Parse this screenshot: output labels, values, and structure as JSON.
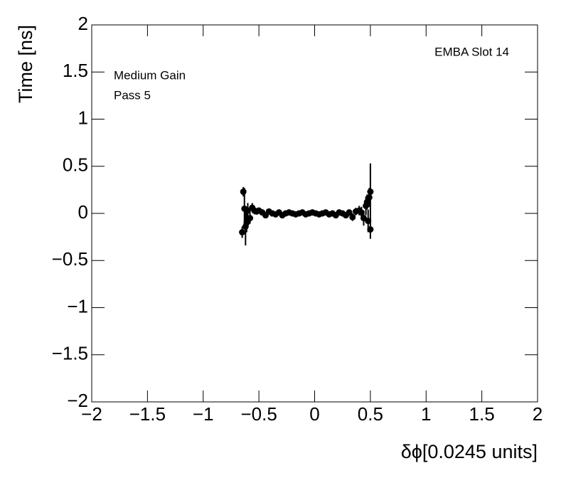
{
  "chart_data": {
    "type": "scatter",
    "xlabel": "δϕ[0.0245 units]",
    "ylabel": "Time [ns]",
    "annotations": [
      "EMBA Slot 14",
      "Medium Gain",
      "Pass 5"
    ],
    "xlim": [
      -2,
      2
    ],
    "ylim": [
      -2,
      2
    ],
    "xticks": [
      {
        "value": -2,
        "label": "−2"
      },
      {
        "value": -1.5,
        "label": "−1.5"
      },
      {
        "value": -1,
        "label": "−1"
      },
      {
        "value": -0.5,
        "label": "−0.5"
      },
      0,
      0.5,
      1,
      1.5,
      2
    ],
    "yticks": [
      {
        "value": -2,
        "label": "−2"
      },
      {
        "value": -1.5,
        "label": "−1.5"
      },
      {
        "value": -1,
        "label": "−1"
      },
      {
        "value": -0.5,
        "label": "−0.5"
      },
      0,
      0.5,
      1,
      1.5,
      2
    ],
    "series": [
      {
        "color": "#000000",
        "x": [
          -0.65,
          -0.64,
          -0.63,
          -0.62,
          -0.61,
          -0.6,
          -0.58,
          -0.56,
          -0.54,
          -0.52,
          -0.5,
          -0.47,
          -0.44,
          -0.41,
          -0.38,
          -0.35,
          -0.32,
          -0.29,
          -0.26,
          -0.23,
          -0.2,
          -0.17,
          -0.14,
          -0.11,
          -0.08,
          -0.05,
          -0.02,
          0.01,
          0.04,
          0.07,
          0.1,
          0.13,
          0.16,
          0.19,
          0.22,
          0.25,
          0.28,
          0.31,
          0.34,
          0.37,
          0.4,
          0.42,
          0.44,
          0.46,
          0.47,
          0.48,
          0.49,
          0.5,
          0.5
        ],
        "values": [
          -0.2,
          0.23,
          0.05,
          -0.14,
          -0.1,
          0.03,
          -0.05,
          0.06,
          0.03,
          0.02,
          0.03,
          0.01,
          -0.02,
          0.02,
          0.0,
          -0.01,
          0.01,
          -0.02,
          0.0,
          0.01,
          0.0,
          -0.01,
          0.0,
          0.01,
          -0.01,
          0.0,
          0.01,
          0.0,
          -0.01,
          0.0,
          0.01,
          -0.01,
          0.0,
          -0.02,
          0.01,
          0.0,
          -0.02,
          0.01,
          -0.04,
          0.02,
          0.03,
          0.01,
          -0.05,
          0.08,
          0.12,
          -0.08,
          0.17,
          0.23,
          -0.17
        ],
        "errors": [
          0.06,
          0.05,
          0.22,
          0.2,
          0.1,
          0.08,
          0.06,
          0.05,
          0.04,
          0.03,
          0.03,
          0.02,
          0.02,
          0.02,
          0.02,
          0.02,
          0.02,
          0.02,
          0.02,
          0.02,
          0.02,
          0.02,
          0.02,
          0.02,
          0.02,
          0.02,
          0.02,
          0.02,
          0.02,
          0.02,
          0.02,
          0.02,
          0.02,
          0.02,
          0.02,
          0.02,
          0.03,
          0.03,
          0.04,
          0.04,
          0.05,
          0.06,
          0.08,
          0.1,
          0.08,
          0.12,
          0.1,
          0.3,
          0.1
        ]
      }
    ]
  }
}
